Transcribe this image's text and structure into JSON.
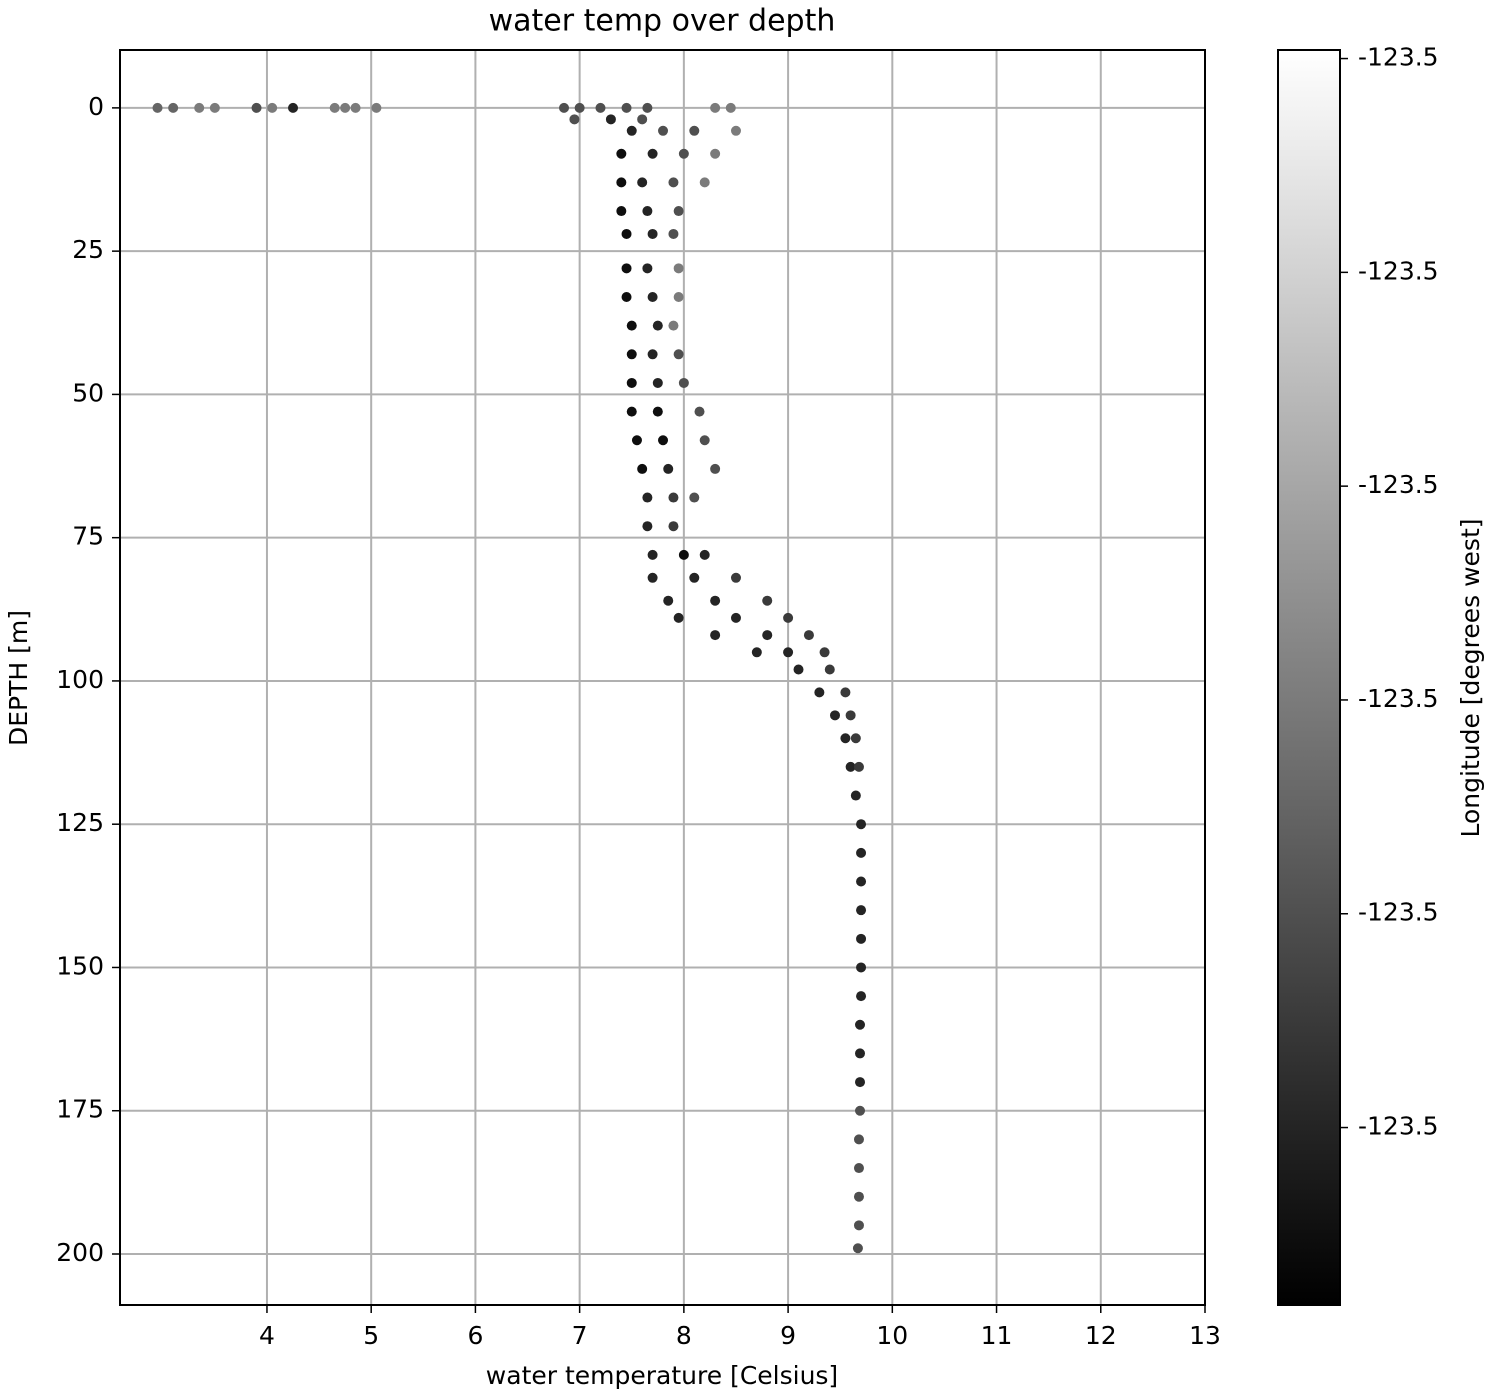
{
  "chart_data": {
    "type": "scatter",
    "title": "water temp over depth",
    "x_label": "water temperature [Celsius]",
    "y_label": "DEPTH [m]",
    "colorbar_label": "Longitude [degrees west]",
    "colormap": "gray",
    "grid": true,
    "xlim": [
      2.59,
      13
    ],
    "ylim": [
      208.9,
      -10.1
    ],
    "xticks": [
      4,
      5,
      6,
      7,
      8,
      9,
      10,
      11,
      12,
      13
    ],
    "yticks": [
      0,
      25,
      50,
      75,
      100,
      125,
      150,
      175,
      200
    ],
    "clim": [
      -123.50583,
      -123.49996
    ],
    "cticks": [
      {
        "value": -123.505,
        "label": "-123.5"
      },
      {
        "value": -123.504,
        "label": "-123.5"
      },
      {
        "value": -123.503,
        "label": "-123.5"
      },
      {
        "value": -123.502,
        "label": "-123.5"
      },
      {
        "value": -123.501,
        "label": "-123.5"
      },
      {
        "value": -123.5,
        "label": "-123.5"
      }
    ],
    "x": [
      2.95,
      3.1,
      3.35,
      3.5,
      3.9,
      4.05,
      4.25,
      4.65,
      4.75,
      4.85,
      5.05,
      6.85,
      7.0,
      7.2,
      7.45,
      7.65,
      8.3,
      8.45,
      6.95,
      7.3,
      7.6,
      7.5,
      7.8,
      8.1,
      8.5,
      7.4,
      7.7,
      8.0,
      8.3,
      7.4,
      7.6,
      7.9,
      8.2,
      7.4,
      7.65,
      7.95,
      7.45,
      7.7,
      7.9,
      7.45,
      7.65,
      7.95,
      7.45,
      7.7,
      7.95,
      7.5,
      7.75,
      7.9,
      7.5,
      7.7,
      7.95,
      7.5,
      7.75,
      8.0,
      7.5,
      7.75,
      8.15,
      7.55,
      7.8,
      8.2,
      7.6,
      7.85,
      8.3,
      7.65,
      7.9,
      8.1,
      7.65,
      7.9,
      7.7,
      8.0,
      8.2,
      7.7,
      8.1,
      8.5,
      7.85,
      8.3,
      8.8,
      7.95,
      8.5,
      9.0,
      8.3,
      8.8,
      9.2,
      8.7,
      9.0,
      9.35,
      9.1,
      9.4,
      9.3,
      9.55,
      9.45,
      9.6,
      9.55,
      9.65,
      9.6,
      9.68,
      9.65,
      9.7,
      9.7,
      9.7,
      9.7,
      9.69,
      9.69,
      9.68,
      9.68,
      9.67,
      9.7,
      9.7,
      9.7,
      9.69,
      9.69,
      9.68,
      9.68
    ],
    "values": [
      0,
      0,
      0,
      0,
      0,
      0,
      0,
      0,
      0,
      0,
      0,
      0,
      0,
      0,
      0,
      0,
      0,
      0,
      2,
      2,
      2,
      4,
      4,
      4,
      4,
      8,
      8,
      8,
      8,
      13,
      13,
      13,
      13,
      18,
      18,
      18,
      22,
      22,
      22,
      28,
      28,
      28,
      33,
      33,
      33,
      38,
      38,
      38,
      43,
      43,
      43,
      48,
      48,
      48,
      53,
      53,
      53,
      58,
      58,
      58,
      63,
      63,
      63,
      68,
      68,
      68,
      73,
      73,
      78,
      78,
      78,
      82,
      82,
      82,
      86,
      86,
      86,
      89,
      89,
      89,
      92,
      92,
      92,
      95,
      95,
      95,
      98,
      98,
      102,
      102,
      106,
      106,
      110,
      110,
      115,
      115,
      120,
      125,
      130,
      140,
      150,
      160,
      170,
      180,
      190,
      199,
      135,
      145,
      155,
      165,
      175,
      185,
      195
    ],
    "c": [
      -123.5035,
      -123.5035,
      -123.503,
      -123.503,
      -123.504,
      -123.503,
      -123.505,
      -123.503,
      -123.503,
      -123.503,
      -123.503,
      -123.504,
      -123.504,
      -123.504,
      -123.504,
      -123.504,
      -123.503,
      -123.503,
      -123.504,
      -123.505,
      -123.504,
      -123.505,
      -123.504,
      -123.504,
      -123.503,
      -123.5055,
      -123.505,
      -123.504,
      -123.503,
      -123.5055,
      -123.505,
      -123.504,
      -123.503,
      -123.5055,
      -123.505,
      -123.504,
      -123.5055,
      -123.505,
      -123.504,
      -123.5055,
      -123.505,
      -123.503,
      -123.5055,
      -123.505,
      -123.503,
      -123.5055,
      -123.505,
      -123.503,
      -123.5055,
      -123.505,
      -123.504,
      -123.5055,
      -123.505,
      -123.504,
      -123.5055,
      -123.5055,
      -123.504,
      -123.5055,
      -123.5055,
      -123.504,
      -123.5055,
      -123.505,
      -123.504,
      -123.505,
      -123.5045,
      -123.504,
      -123.505,
      -123.5045,
      -123.505,
      -123.5055,
      -123.505,
      -123.505,
      -123.505,
      -123.5045,
      -123.505,
      -123.505,
      -123.5045,
      -123.505,
      -123.505,
      -123.5045,
      -123.505,
      -123.505,
      -123.5045,
      -123.505,
      -123.505,
      -123.5045,
      -123.505,
      -123.5045,
      -123.505,
      -123.5045,
      -123.505,
      -123.5045,
      -123.505,
      -123.5045,
      -123.505,
      -123.5045,
      -123.505,
      -123.505,
      -123.505,
      -123.505,
      -123.505,
      -123.505,
      -123.505,
      -123.504,
      -123.504,
      -123.504,
      -123.505,
      -123.505,
      -123.505,
      -123.505,
      -123.504,
      -123.504,
      -123.504
    ]
  }
}
